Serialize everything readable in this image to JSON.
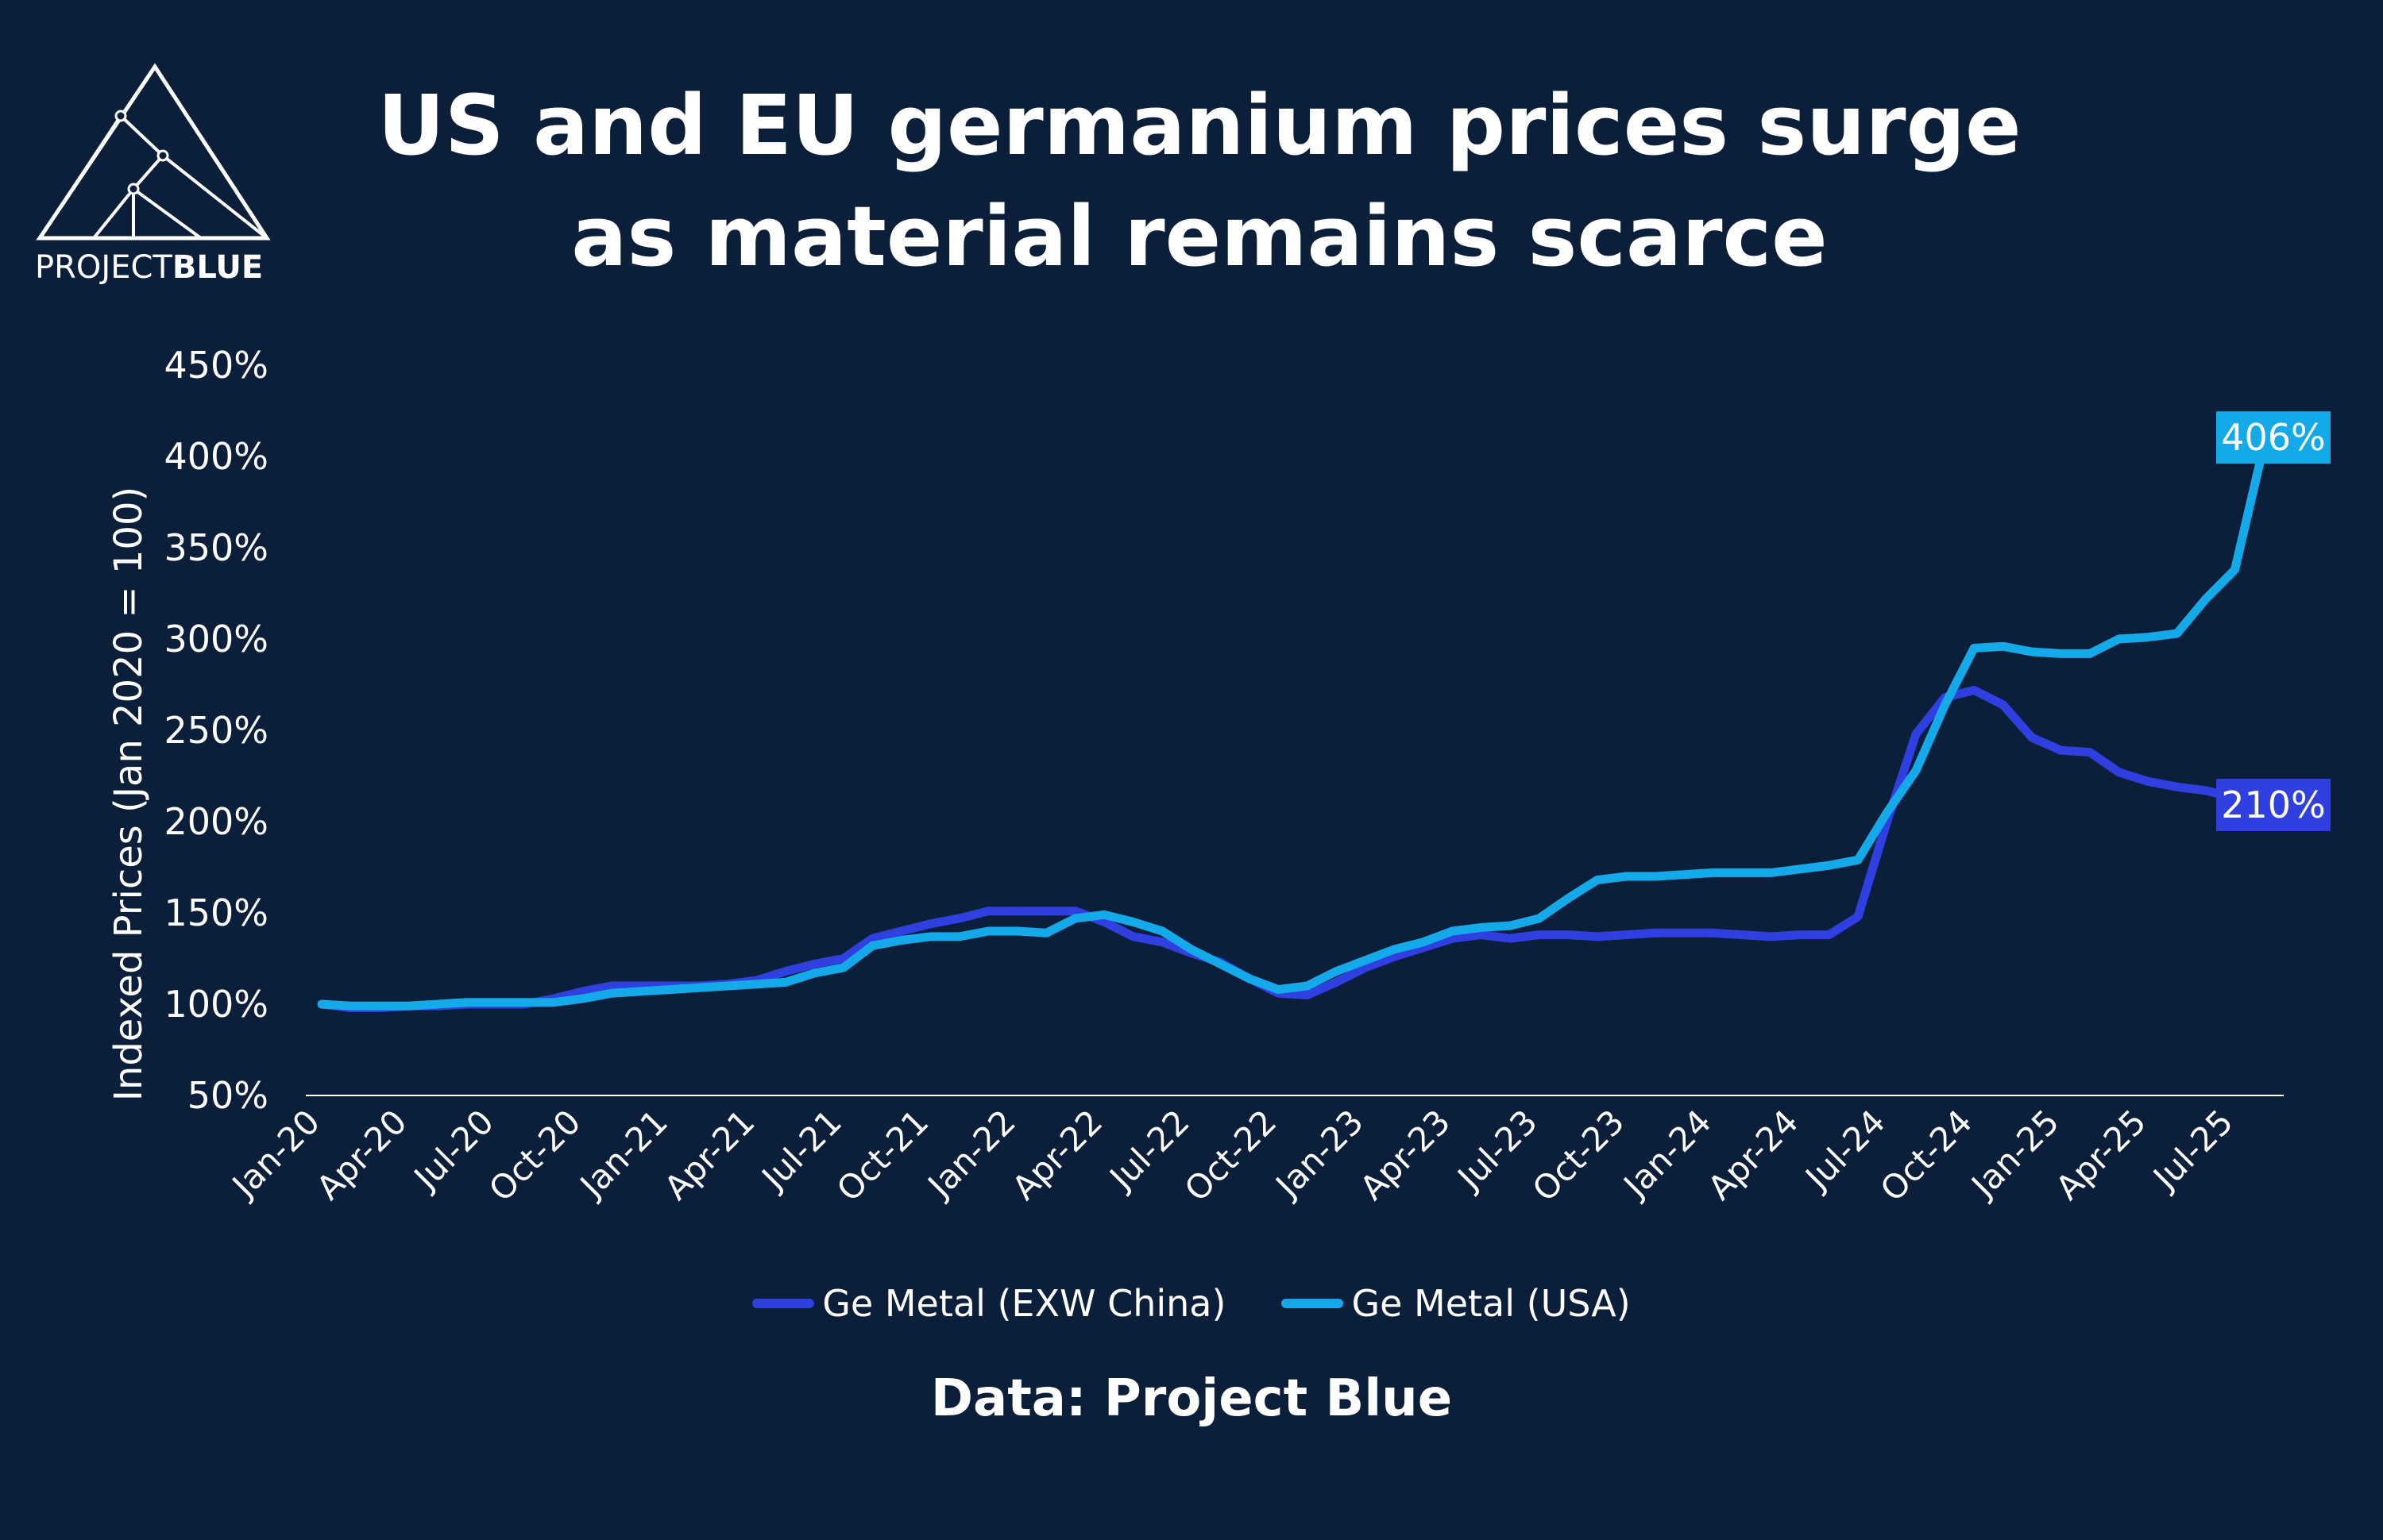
{
  "brand": {
    "name_light": "PROJECT",
    "name_bold": "BLUE"
  },
  "colors": {
    "background": "#0b1f3a",
    "china": "#2f3fe0",
    "usa": "#14a9e8"
  },
  "chart_data": {
    "type": "line",
    "title_lines": [
      "US and EU germanium prices surge",
      "as material remains scarce"
    ],
    "ylabel": "Indexed Prices (Jan 2020 = 100)",
    "source": "Data: Project Blue",
    "ylim": [
      50,
      450
    ],
    "y_ticks": [
      "450%",
      "400%",
      "350%",
      "300%",
      "250%",
      "200%",
      "150%",
      "100%",
      "50%"
    ],
    "x_tick_labels": [
      "Jan-20",
      "Apr-20",
      "Jul-20",
      "Oct-20",
      "Jan-21",
      "Apr-21",
      "Jul-21",
      "Oct-21",
      "Jan-22",
      "Apr-22",
      "Jul-22",
      "Oct-22",
      "Jan-23",
      "Apr-23",
      "Jul-23",
      "Oct-23",
      "Jan-24",
      "Apr-24",
      "Jul-24",
      "Oct-24",
      "Jan-25",
      "Apr-25",
      "Jul-25"
    ],
    "legend_position": "bottom",
    "grid": false,
    "series": [
      {
        "name": "Ge Metal (EXW China)",
        "color": "#2f3fe0",
        "end_label": "210%",
        "values": [
          100,
          98,
          98,
          99,
          99,
          100,
          100,
          100,
          103,
          107,
          110,
          110,
          110,
          110,
          111,
          113,
          118,
          122,
          125,
          136,
          140,
          144,
          147,
          151,
          151,
          151,
          151,
          145,
          137,
          134,
          128,
          123,
          114,
          106,
          105,
          112,
          120,
          126,
          131,
          136,
          138,
          136,
          138,
          138,
          137,
          138,
          139,
          139,
          139,
          138,
          137,
          138,
          138,
          148,
          200,
          248,
          268,
          272,
          264,
          246,
          239,
          238,
          227,
          222,
          219,
          217,
          213,
          210
        ]
      },
      {
        "name": "Ge Metal (USA)",
        "color": "#14a9e8",
        "end_label": "406%",
        "values": [
          100,
          99,
          99,
          99,
          100,
          101,
          101,
          101,
          101,
          103,
          106,
          107,
          108,
          109,
          110,
          111,
          112,
          117,
          120,
          132,
          135,
          137,
          137,
          140,
          140,
          139,
          147,
          149,
          145,
          140,
          130,
          122,
          114,
          108,
          110,
          118,
          124,
          130,
          134,
          140,
          142,
          143,
          147,
          158,
          168,
          170,
          170,
          171,
          172,
          172,
          172,
          174,
          176,
          179,
          205,
          228,
          264,
          295,
          296,
          293,
          292,
          292,
          300,
          301,
          303,
          322,
          338,
          406
        ]
      }
    ]
  }
}
